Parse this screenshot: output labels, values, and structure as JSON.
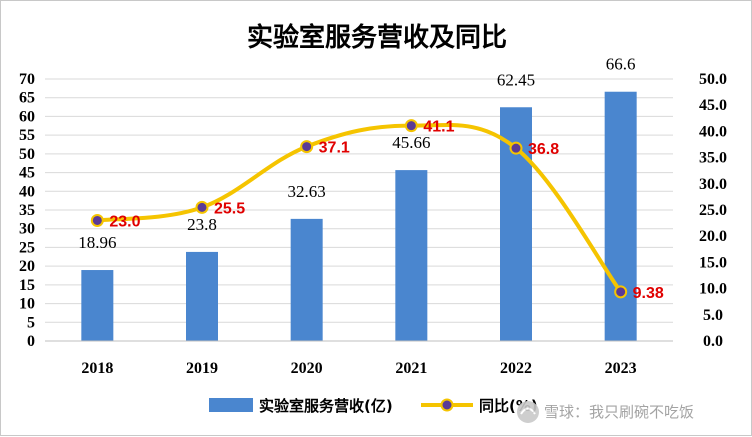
{
  "chart_data": {
    "type": "bar+line",
    "title": "实验室服务营收及同比",
    "categories": [
      "2018",
      "2019",
      "2020",
      "2021",
      "2022",
      "2023"
    ],
    "series": [
      {
        "name": "实验室服务营收(亿)",
        "type": "bar",
        "axis": "left",
        "values": [
          18.96,
          23.8,
          32.63,
          45.66,
          62.45,
          66.6
        ],
        "labels": [
          "18.96",
          "23.8",
          "32.63",
          "45.66",
          "62.45",
          "66.6"
        ],
        "color": "#4a86cf"
      },
      {
        "name": "同比(%)",
        "type": "line",
        "axis": "right",
        "values": [
          23.0,
          25.5,
          37.1,
          41.1,
          36.8,
          9.38
        ],
        "labels": [
          "23.0",
          "25.5",
          "37.1",
          "41.1",
          "36.8",
          "9.38"
        ],
        "color": "#f5c400",
        "marker_color": "#5b3a96",
        "label_color": "#e00000"
      }
    ],
    "y_left": {
      "min": 0,
      "max": 70,
      "step": 5,
      "ticks": [
        "0",
        "5",
        "10",
        "15",
        "20",
        "25",
        "30",
        "35",
        "40",
        "45",
        "50",
        "55",
        "60",
        "65",
        "70"
      ]
    },
    "y_right": {
      "min": 0,
      "max": 50,
      "step": 5,
      "ticks": [
        "0.0",
        "5.0",
        "10.0",
        "15.0",
        "20.0",
        "25.0",
        "30.0",
        "35.0",
        "40.0",
        "45.0",
        "50.0"
      ]
    },
    "grid": true,
    "legend_position": "bottom-center"
  },
  "watermark": {
    "text": "雪球：我只刷碗不吃饭",
    "icon": "snowball-logo-icon"
  }
}
